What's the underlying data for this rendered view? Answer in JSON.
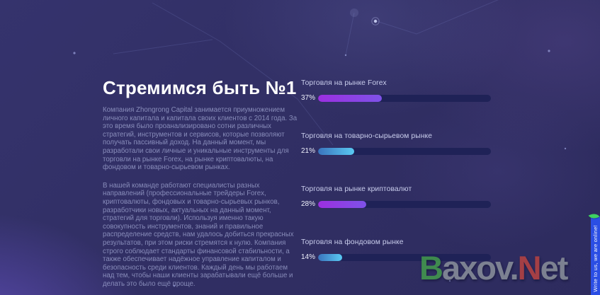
{
  "hero": {
    "heading": "Стремимся быть №1",
    "paragraphs": [
      "Компания Zhongrong Capital занимается приумножением личного капитала и капитала своих клиентов с 2014 года. За это время было проанализировано сотни различных стратегий, инструментов и сервисов, которые позволяют получать пассивный доход. На данный момент, мы разработали свои личные и уникальные инструменты для торговли на рынке Forex, на рынке криптовалюты, на фондовом и товарно-сырьевом рынках.",
      "В нашей команде работают специалисты разных направлений (профессиональные трейдеры Forex, криптовалюты, фондовых и товарно-сырьевых рынков, разработчики новых, актуальных на данный момент, стратегий для торговли). Используя именно такую совокупность инструментов, знаний и правильное распределение средств, нам удалось добиться прекрасных результатов, при этом риски стремятся к нулю. Компания строго соблюдает стандарты финансовой стабильности, а также обеспечивает надёжное управление капиталом и безопасность среди клиентов. Каждый день мы работаем над тем, чтобы наши клиенты зарабатывали ещё больше и делать это было ещё проще."
    ]
  },
  "stats": {
    "items": [
      {
        "label": "Торговля на рынке Forex",
        "percent": "37%",
        "value": 37,
        "color_start": "#9c2fe0",
        "color_end": "#7e52e8"
      },
      {
        "label": "Торговля на товарно-сырьевом рынке",
        "percent": "21%",
        "value": 21,
        "color_start": "#3a74bd",
        "color_end": "#5ac9f2"
      },
      {
        "label": "Торговля на рынке криптовалют",
        "percent": "28%",
        "value": 28,
        "color_start": "#9c2fe0",
        "color_end": "#7e52e8"
      },
      {
        "label": "Торговля на фондовом рынке",
        "percent": "14%",
        "value": 14,
        "color_start": "#3a74bd",
        "color_end": "#5ac9f2"
      }
    ]
  },
  "watermark": {
    "segments": [
      {
        "text": "B",
        "color": "#44a04c"
      },
      {
        "text": "axov.",
        "color": "#8e949d"
      },
      {
        "text": "N",
        "color": "#bf4440"
      },
      {
        "text": "et",
        "color": "#8e949d"
      }
    ]
  },
  "chat_tab": {
    "label": "Write to us, we are online!",
    "background": "#2b4ee4",
    "leaf_color": "#3ed160"
  },
  "theme": {
    "background": "#312f64",
    "track_color": "#1f2257",
    "heading_color": "#ffffff",
    "label_color": "#c9cdec"
  }
}
